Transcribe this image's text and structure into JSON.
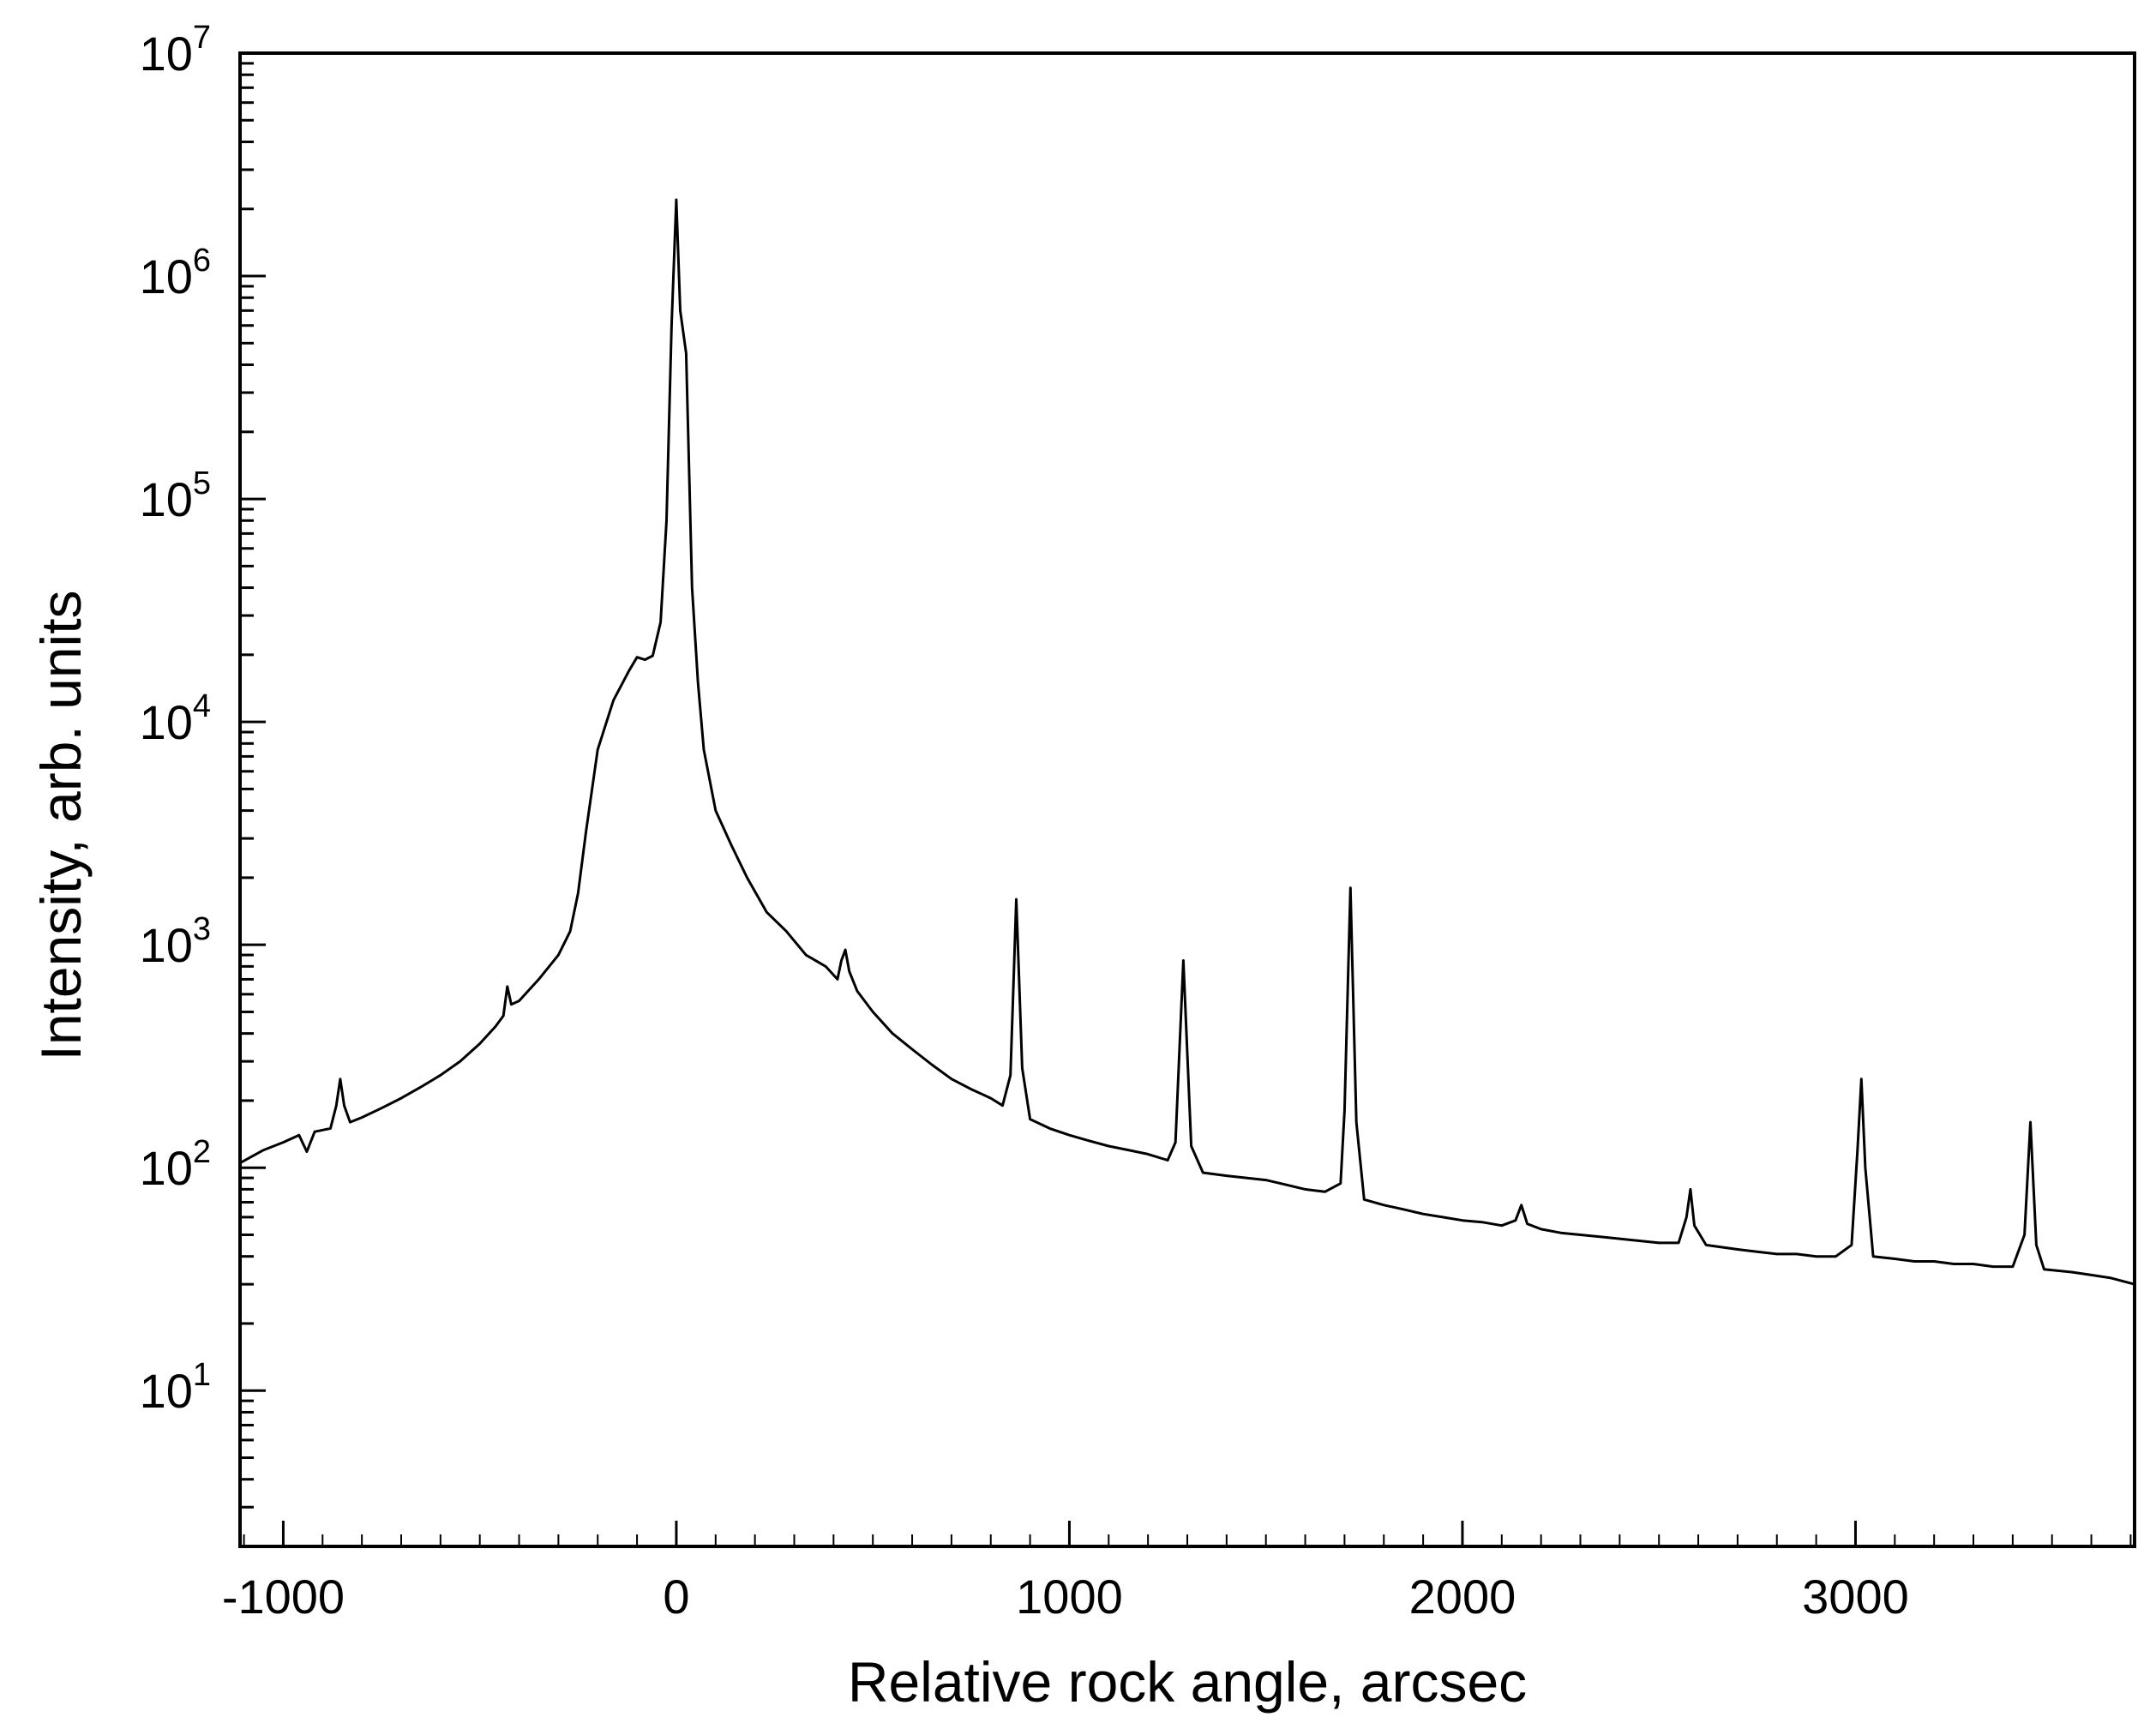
{
  "chart_data": {
    "type": "line",
    "title": "",
    "xlabel": "Relative rock angle, arcsec",
    "ylabel": "Intensity, arb. units",
    "xlim": [
      -1110,
      3710
    ],
    "ylim": [
      2,
      10000000
    ],
    "yscale": "log",
    "grid": false,
    "x_ticks": [
      {
        "value": -1000,
        "label": "-1000"
      },
      {
        "value": 0,
        "label": "0"
      },
      {
        "value": 1000,
        "label": "1000"
      },
      {
        "value": 2000,
        "label": "2000"
      },
      {
        "value": 3000,
        "label": "3000"
      }
    ],
    "y_ticks": [
      {
        "value": 10,
        "base": "10",
        "exp": "1"
      },
      {
        "value": 100,
        "base": "10",
        "exp": "2"
      },
      {
        "value": 1000,
        "base": "10",
        "exp": "3"
      },
      {
        "value": 10000,
        "base": "10",
        "exp": "4"
      },
      {
        "value": 100000,
        "base": "10",
        "exp": "5"
      },
      {
        "value": 1000000,
        "base": "10",
        "exp": "6"
      },
      {
        "value": 10000000,
        "base": "10",
        "exp": "7"
      }
    ],
    "series": [
      {
        "color": "#000000",
        "points": [
          [
            -1110,
            105
          ],
          [
            -1050,
            120
          ],
          [
            -1000,
            130
          ],
          [
            -960,
            140
          ],
          [
            -940,
            118
          ],
          [
            -920,
            145
          ],
          [
            -880,
            150
          ],
          [
            -865,
            190
          ],
          [
            -855,
            250
          ],
          [
            -845,
            190
          ],
          [
            -830,
            160
          ],
          [
            -800,
            168
          ],
          [
            -750,
            185
          ],
          [
            -700,
            205
          ],
          [
            -650,
            230
          ],
          [
            -600,
            260
          ],
          [
            -550,
            300
          ],
          [
            -500,
            360
          ],
          [
            -460,
            430
          ],
          [
            -440,
            480
          ],
          [
            -430,
            650
          ],
          [
            -420,
            540
          ],
          [
            -400,
            560
          ],
          [
            -350,
            700
          ],
          [
            -300,
            900
          ],
          [
            -270,
            1150
          ],
          [
            -250,
            1700
          ],
          [
            -230,
            3200
          ],
          [
            -200,
            7500
          ],
          [
            -160,
            12500
          ],
          [
            -120,
            17000
          ],
          [
            -100,
            19500
          ],
          [
            -80,
            19000
          ],
          [
            -60,
            19800
          ],
          [
            -40,
            28000
          ],
          [
            -25,
            80000
          ],
          [
            -12,
            600000
          ],
          [
            0,
            2200000
          ],
          [
            10,
            700000
          ],
          [
            25,
            450000
          ],
          [
            40,
            40000
          ],
          [
            55,
            15000
          ],
          [
            70,
            7500
          ],
          [
            100,
            4000
          ],
          [
            140,
            2800
          ],
          [
            180,
            2000
          ],
          [
            230,
            1400
          ],
          [
            280,
            1150
          ],
          [
            330,
            900
          ],
          [
            380,
            800
          ],
          [
            410,
            700
          ],
          [
            420,
            850
          ],
          [
            430,
            950
          ],
          [
            440,
            760
          ],
          [
            460,
            620
          ],
          [
            500,
            500
          ],
          [
            550,
            400
          ],
          [
            600,
            340
          ],
          [
            650,
            290
          ],
          [
            700,
            250
          ],
          [
            750,
            225
          ],
          [
            800,
            205
          ],
          [
            830,
            190
          ],
          [
            850,
            260
          ],
          [
            865,
            1600
          ],
          [
            880,
            280
          ],
          [
            900,
            165
          ],
          [
            950,
            150
          ],
          [
            1000,
            140
          ],
          [
            1050,
            132
          ],
          [
            1100,
            125
          ],
          [
            1150,
            120
          ],
          [
            1200,
            115
          ],
          [
            1250,
            108
          ],
          [
            1270,
            130
          ],
          [
            1290,
            850
          ],
          [
            1310,
            125
          ],
          [
            1340,
            95
          ],
          [
            1400,
            92
          ],
          [
            1450,
            90
          ],
          [
            1500,
            88
          ],
          [
            1550,
            84
          ],
          [
            1600,
            80
          ],
          [
            1650,
            78
          ],
          [
            1690,
            85
          ],
          [
            1700,
            180
          ],
          [
            1715,
            1800
          ],
          [
            1730,
            160
          ],
          [
            1750,
            72
          ],
          [
            1800,
            68
          ],
          [
            1850,
            65
          ],
          [
            1900,
            62
          ],
          [
            1950,
            60
          ],
          [
            2000,
            58
          ],
          [
            2050,
            57
          ],
          [
            2100,
            55
          ],
          [
            2135,
            58
          ],
          [
            2150,
            68
          ],
          [
            2165,
            56
          ],
          [
            2200,
            53
          ],
          [
            2250,
            51
          ],
          [
            2300,
            50
          ],
          [
            2350,
            49
          ],
          [
            2400,
            48
          ],
          [
            2450,
            47
          ],
          [
            2500,
            46
          ],
          [
            2550,
            46
          ],
          [
            2570,
            60
          ],
          [
            2580,
            80
          ],
          [
            2590,
            55
          ],
          [
            2620,
            45
          ],
          [
            2700,
            43
          ],
          [
            2750,
            42
          ],
          [
            2800,
            41
          ],
          [
            2850,
            41
          ],
          [
            2900,
            40
          ],
          [
            2950,
            40
          ],
          [
            2990,
            45
          ],
          [
            3005,
            120
          ],
          [
            3015,
            250
          ],
          [
            3025,
            100
          ],
          [
            3045,
            40
          ],
          [
            3100,
            39
          ],
          [
            3150,
            38
          ],
          [
            3200,
            38
          ],
          [
            3250,
            37
          ],
          [
            3300,
            37
          ],
          [
            3350,
            36
          ],
          [
            3400,
            36
          ],
          [
            3430,
            50
          ],
          [
            3445,
            160
          ],
          [
            3460,
            45
          ],
          [
            3480,
            35
          ],
          [
            3550,
            34
          ],
          [
            3600,
            33
          ],
          [
            3650,
            32
          ],
          [
            3710,
            30
          ]
        ]
      }
    ]
  }
}
